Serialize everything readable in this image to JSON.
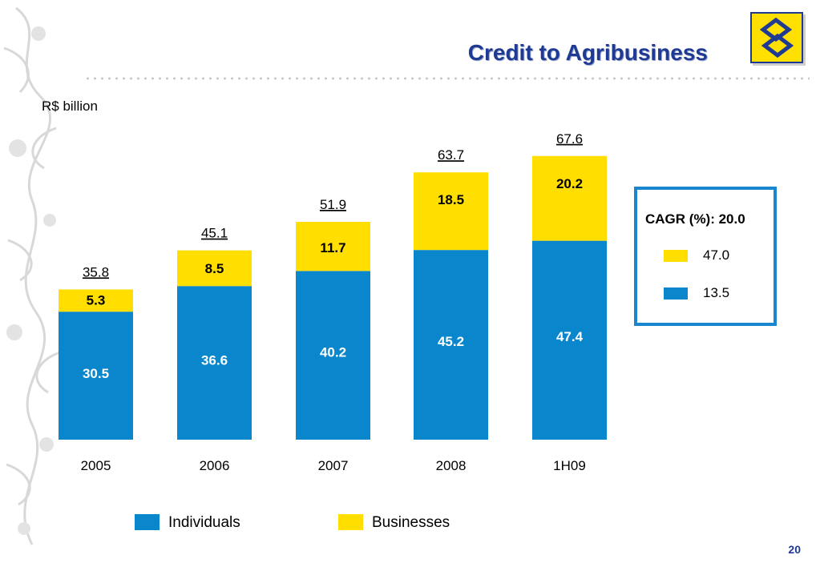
{
  "slide": {
    "title": "Credit to Agribusiness",
    "unit_label": "R$ billion",
    "page_number": "20"
  },
  "colors": {
    "individuals": "#0a86cc",
    "businesses": "#ffde00",
    "title": "#1f3a93"
  },
  "cagr": {
    "title": "CAGR (%): 20.0",
    "businesses_value": "47.0",
    "individuals_value": "13.5"
  },
  "legend": {
    "individuals_label": "Individuals",
    "businesses_label": "Businesses"
  },
  "chart_data": {
    "type": "bar",
    "stacked": true,
    "categories": [
      "2005",
      "2006",
      "2007",
      "2008",
      "1H09"
    ],
    "series": [
      {
        "name": "Individuals",
        "values": [
          30.5,
          36.6,
          40.2,
          45.2,
          47.4
        ]
      },
      {
        "name": "Businesses",
        "values": [
          5.3,
          8.5,
          11.7,
          18.5,
          20.2
        ]
      }
    ],
    "totals": [
      "35.8",
      "45.1",
      "51.9",
      "63.7",
      "67.6"
    ],
    "title": "Credit to Agribusiness",
    "ylabel": "R$ billion",
    "xlabel": "",
    "ylim": [
      0,
      70
    ],
    "grid": false,
    "legend_position": "bottom"
  }
}
